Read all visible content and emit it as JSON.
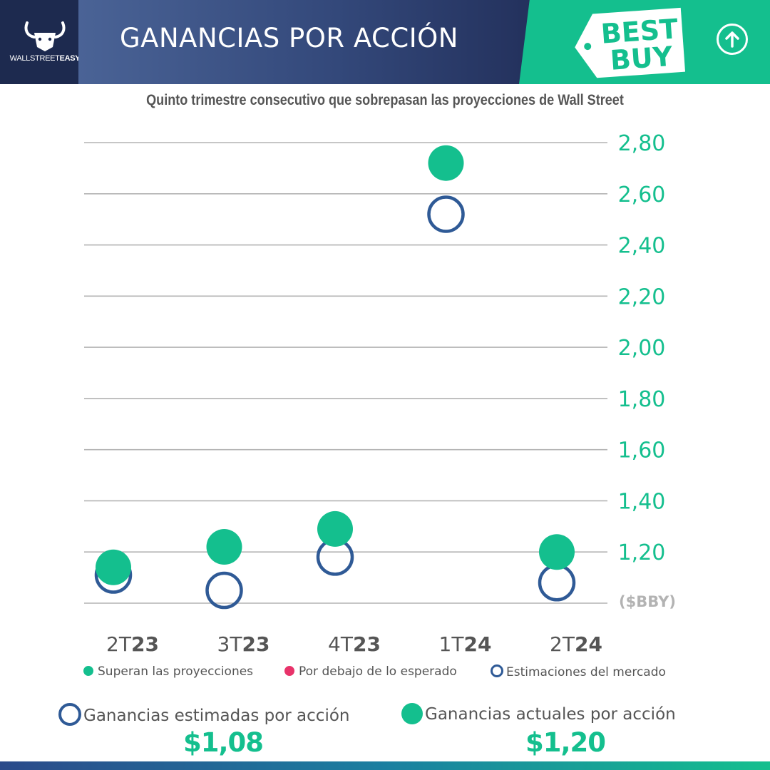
{
  "header": {
    "logo_text_light": "WALLSTREET",
    "logo_text_bold": "EASY",
    "title": "GANANCIAS POR ACCIÓN",
    "brand_line1": "BEST",
    "brand_line2": "BUY",
    "arrow_icon": "arrow-up-circle-icon"
  },
  "subtitle": "Quinto trimestre consecutivo que sobrepasan las proyecciones de Wall Street",
  "colors": {
    "green": "#14bf8e",
    "blue": "#2f5a96",
    "red": "#e8336a",
    "navy": "#1d2a4f",
    "grid": "#b3b3b3",
    "text": "#555555"
  },
  "chart_data": {
    "type": "scatter",
    "categories": [
      {
        "light": "2T",
        "bold": "23"
      },
      {
        "light": "3T",
        "bold": "23"
      },
      {
        "light": "4T",
        "bold": "23"
      },
      {
        "light": "1T",
        "bold": "24"
      },
      {
        "light": "2T",
        "bold": "24"
      }
    ],
    "series": [
      {
        "name": "Estimaciones del mercado",
        "values": [
          1.11,
          1.05,
          1.18,
          2.52,
          1.08
        ],
        "marker": "ring"
      },
      {
        "name": "Superan las proyecciones",
        "values": [
          1.14,
          1.22,
          1.29,
          2.72,
          1.2
        ],
        "marker": "dot"
      }
    ],
    "y_ticks": [
      "2,80",
      "2,60",
      "2,40",
      "2,20",
      "2,00",
      "1,80",
      "1,60",
      "1,40",
      "1,20"
    ],
    "y_tick_values": [
      2.8,
      2.6,
      2.4,
      2.2,
      2.0,
      1.8,
      1.6,
      1.4,
      1.2
    ],
    "ylim": [
      1.0,
      2.8
    ],
    "y_unit_label": "($BBY)",
    "grid": true,
    "legend_position": "bottom",
    "legend": [
      {
        "label": "Superan las proyecciones",
        "marker": "dot",
        "color": "#14bf8e"
      },
      {
        "label": "Por debajo de lo esperado",
        "marker": "dot",
        "color": "#e8336a"
      },
      {
        "label": "Estimaciones del mercado",
        "marker": "ring",
        "color": "#2f5a96"
      }
    ]
  },
  "summary": {
    "estimated_label": "Ganancias estimadas por acción",
    "estimated_value": "$1,08",
    "actual_label": "Ganancias actuales por acción",
    "actual_value": "$1,20"
  }
}
